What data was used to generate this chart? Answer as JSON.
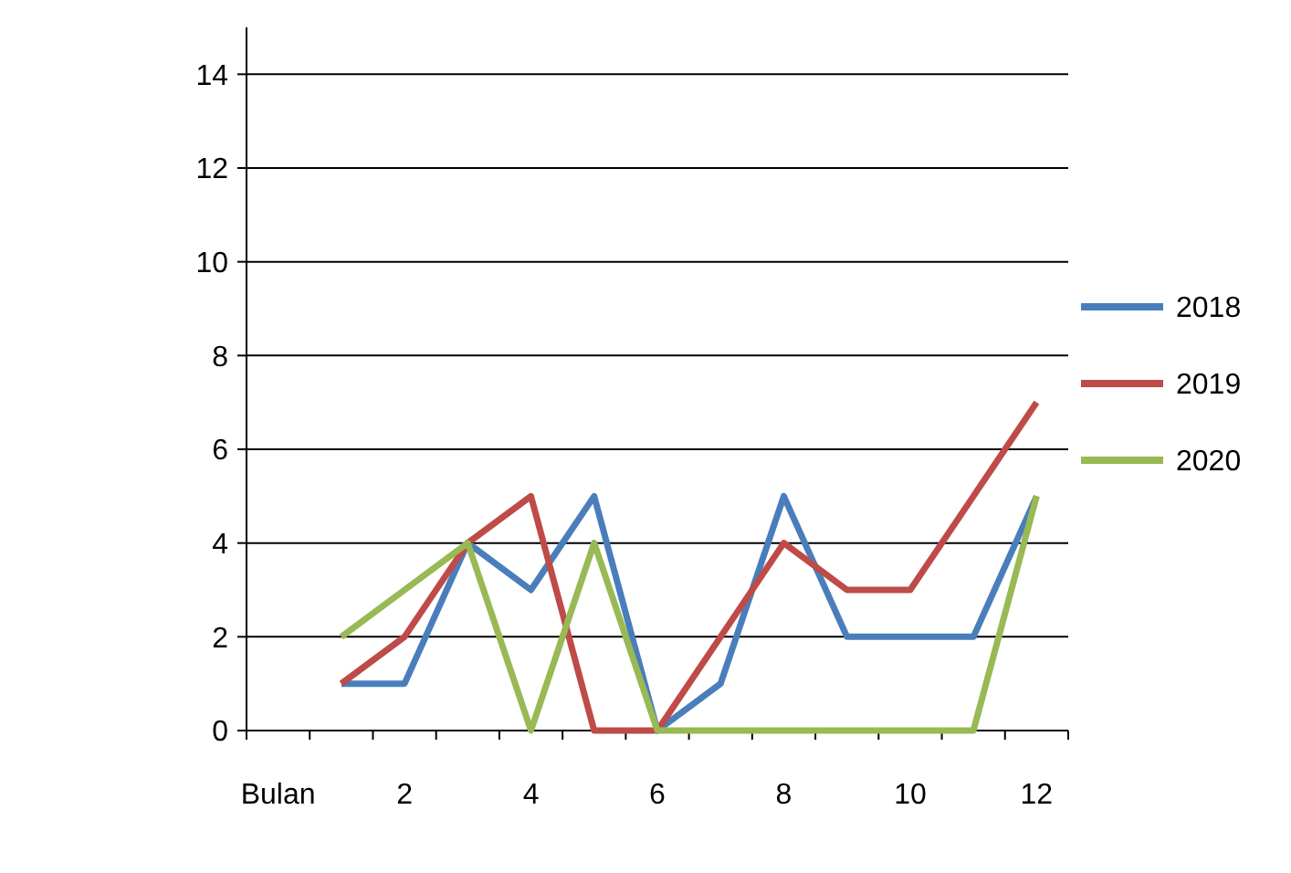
{
  "chart_data": {
    "type": "line",
    "categories": [
      "Bulan",
      null,
      "2",
      null,
      "4",
      null,
      "6",
      null,
      "8",
      null,
      "10",
      null,
      "12"
    ],
    "series": [
      {
        "name": "2018",
        "color": "#4a7ebb",
        "values": [
          null,
          1,
          1,
          4,
          3,
          5,
          0,
          1,
          5,
          2,
          2,
          2,
          5
        ]
      },
      {
        "name": "2019",
        "color": "#be4b48",
        "values": [
          null,
          1,
          2,
          4,
          5,
          0,
          0,
          2,
          4,
          3,
          3,
          5,
          7
        ]
      },
      {
        "name": "2020",
        "color": "#98b954",
        "values": [
          null,
          2,
          3,
          4,
          0,
          4,
          0,
          0,
          0,
          0,
          0,
          0,
          5
        ]
      }
    ],
    "ylim": [
      0,
      15
    ],
    "yticks": [
      0,
      2,
      4,
      6,
      8,
      10,
      12,
      14
    ],
    "grid": "y",
    "legend": "right",
    "line_style": "solid",
    "marker": "none"
  }
}
